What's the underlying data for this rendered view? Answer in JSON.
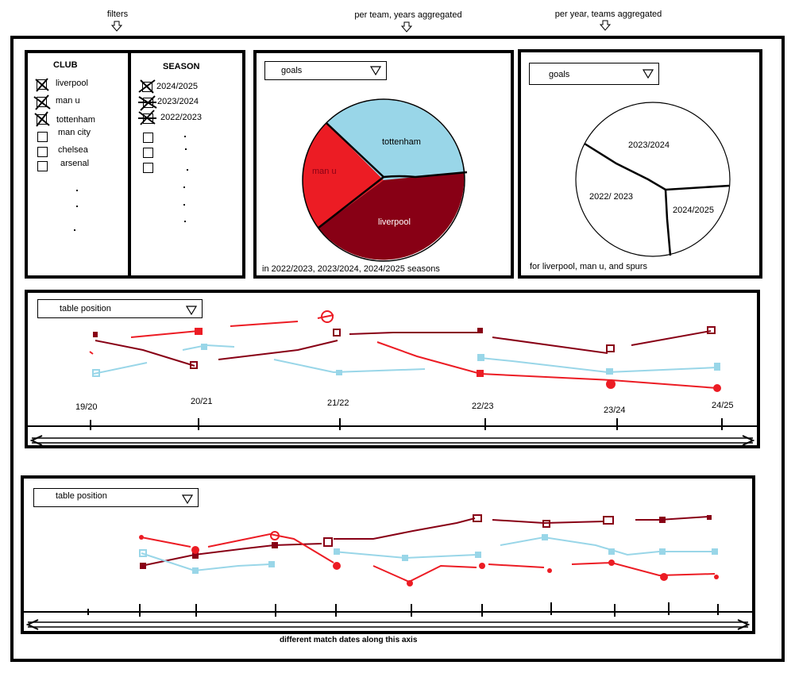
{
  "annotations": {
    "filters": "filters",
    "per_team": "per team, years aggregated",
    "per_year": "per year, teams aggregated"
  },
  "filters": {
    "club_header": "CLUB",
    "season_header": "SEASON",
    "clubs": [
      {
        "label": "liverpool",
        "checked": true
      },
      {
        "label": "man u",
        "checked": true
      },
      {
        "label": "tottenham",
        "checked": true
      },
      {
        "label": "man city",
        "checked": false
      },
      {
        "label": "chelsea",
        "checked": false
      },
      {
        "label": "arsenal",
        "checked": false
      }
    ],
    "seasons": [
      {
        "label": "2024/2025",
        "checked": true
      },
      {
        "label": "2023/2024",
        "checked": true
      },
      {
        "label": "2022/2023",
        "checked": true
      }
    ]
  },
  "pie_team": {
    "dropdown": "goals",
    "caption": "in 2022/2023, 2023/2024, 2024/2025 seasons",
    "slices": [
      {
        "label": "tottenham",
        "color": "#99d6e8"
      },
      {
        "label": "man u",
        "color": "#ec1c24"
      },
      {
        "label": "liverpool",
        "color": "#880015"
      }
    ]
  },
  "pie_year": {
    "dropdown": "goals",
    "caption": "for liverpool, man u, and spurs",
    "slices": [
      {
        "label": "2023/2024"
      },
      {
        "label": "2022/ 2023"
      },
      {
        "label": "2024/2025"
      }
    ]
  },
  "season_chart": {
    "dropdown": "table position",
    "ticks": [
      "19/20",
      "20/21",
      "21/22",
      "22/23",
      "23/24",
      "24/25"
    ]
  },
  "match_chart": {
    "dropdown": "table position",
    "axis_caption": "different match dates along this axis"
  },
  "colors": {
    "liverpool": "#880015",
    "man_u": "#ec1c24",
    "tottenham": "#99d6e8"
  }
}
